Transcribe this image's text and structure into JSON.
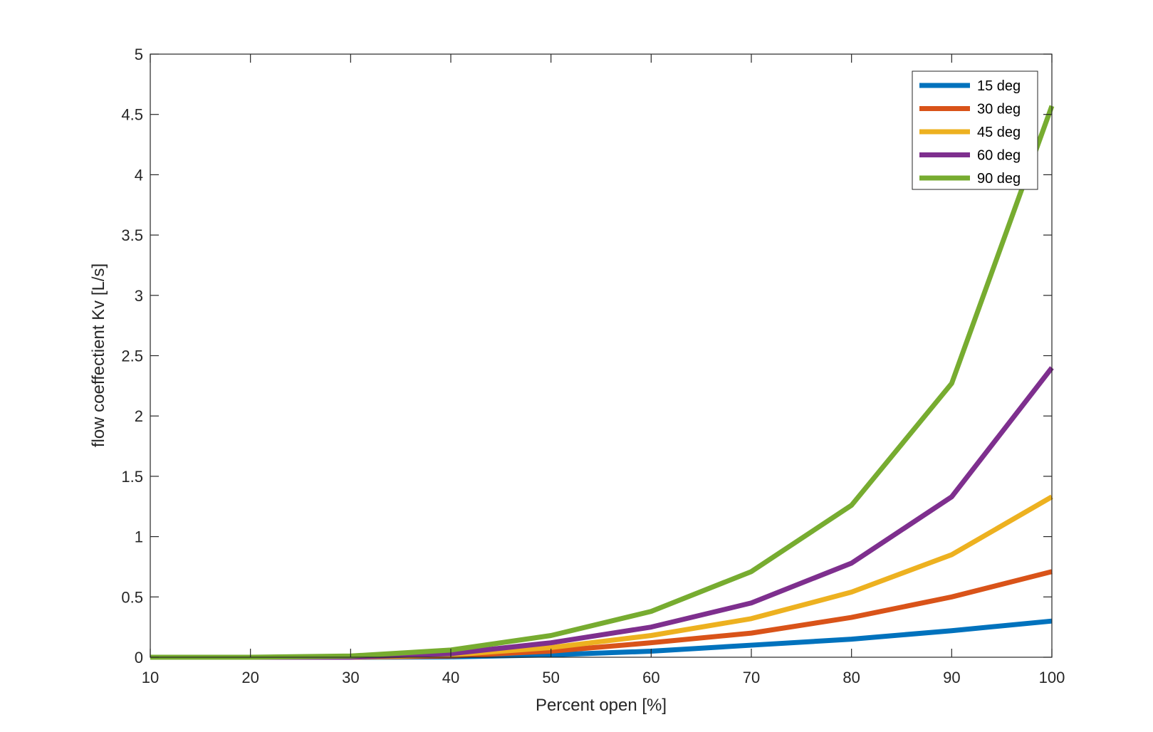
{
  "chart_data": {
    "type": "line",
    "title": "",
    "xlabel": "Percent open [%]",
    "ylabel": "flow coeffectient Kv [L/s]",
    "x": [
      10,
      20,
      30,
      40,
      50,
      60,
      70,
      80,
      90,
      100
    ],
    "xlim": [
      10,
      100
    ],
    "ylim": [
      0,
      5
    ],
    "xticks": [
      "10",
      "20",
      "30",
      "40",
      "50",
      "60",
      "70",
      "80",
      "90",
      "100"
    ],
    "yticks": [
      "0",
      "0.5",
      "1",
      "1.5",
      "2",
      "2.5",
      "3",
      "3.5",
      "4",
      "4.5",
      "5"
    ],
    "grid": false,
    "legend_position": "top-right",
    "series": [
      {
        "name": "15 deg",
        "color": "#0072BD",
        "values": [
          0,
          0,
          0,
          0.003,
          0.02,
          0.05,
          0.1,
          0.15,
          0.22,
          0.3
        ]
      },
      {
        "name": "30 deg",
        "color": "#D95319",
        "values": [
          0,
          0,
          0,
          0.01,
          0.05,
          0.12,
          0.2,
          0.33,
          0.5,
          0.71
        ]
      },
      {
        "name": "45 deg",
        "color": "#EDB120",
        "values": [
          0,
          0,
          0,
          0.02,
          0.08,
          0.18,
          0.32,
          0.54,
          0.85,
          1.33
        ]
      },
      {
        "name": "60 deg",
        "color": "#7E2F8E",
        "values": [
          0,
          0,
          0,
          0.03,
          0.12,
          0.25,
          0.45,
          0.78,
          1.33,
          2.4
        ]
      },
      {
        "name": "90 deg",
        "color": "#77AC30",
        "values": [
          0,
          0,
          0.01,
          0.06,
          0.18,
          0.38,
          0.71,
          1.26,
          2.27,
          4.57
        ]
      }
    ]
  }
}
